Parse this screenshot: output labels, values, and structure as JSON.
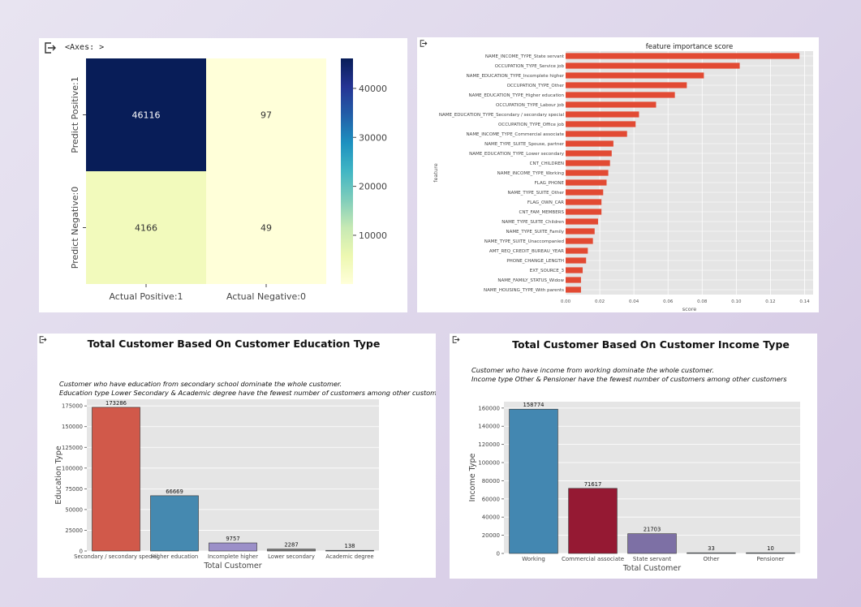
{
  "panels": {
    "heatmap_header": "<Axes: >"
  },
  "icons": [
    "output-icon"
  ],
  "colors": {
    "ylgnbu_low": "#f0f9b7",
    "ylgnbu_mid": "#41b6c4",
    "ylgnbu_high": "#081d58",
    "bar_red": "#e24a33",
    "edu_colors": [
      "#d1594a",
      "#4589b0",
      "#9b8fc8",
      "#7a7a7a",
      "#9ab0c4"
    ],
    "income_colors": [
      "#4387b1",
      "#951933",
      "#7d70a5",
      "#9cb2c5",
      "#9cb2c5"
    ],
    "plot_bg": "#e5e5e5"
  },
  "chart_data": [
    {
      "type": "heatmap",
      "title": "",
      "x_labels": [
        "Actual Positive:1",
        "Actual Negative:0"
      ],
      "y_labels": [
        "Predict Positive:1",
        "Predict Negative:0"
      ],
      "values": [
        [
          46116,
          97
        ],
        [
          4166,
          49
        ]
      ],
      "cell_labels": [
        "46116",
        "97",
        "4166",
        "49"
      ],
      "colorbar_ticks": [
        "10000",
        "20000",
        "30000",
        "40000"
      ],
      "colorbar_tick_values": [
        10000,
        20000,
        30000,
        40000
      ],
      "colorbar_range": [
        49,
        46116
      ],
      "colormap": "YlGnBu"
    },
    {
      "type": "bar",
      "orientation": "horizontal",
      "title": "feature importance score",
      "xlabel": "score",
      "ylabel": "feature",
      "xlim": [
        0,
        0.145
      ],
      "xticks": [
        "0.00",
        "0.02",
        "0.04",
        "0.06",
        "0.08",
        "0.10",
        "0.12",
        "0.14"
      ],
      "xtick_values": [
        0,
        0.02,
        0.04,
        0.06,
        0.08,
        0.1,
        0.12,
        0.14
      ],
      "categories": [
        "NAME_INCOME_TYPE_State servant",
        "OCCUPATION_TYPE_Service job",
        "NAME_EDUCATION_TYPE_Incomplete higher",
        "OCCUPATION_TYPE_Other",
        "NAME_EDUCATION_TYPE_Higher education",
        "OCCUPATION_TYPE_Labour job",
        "NAME_EDUCATION_TYPE_Secondary / secondary special",
        "OCCUPATION_TYPE_Office job",
        "NAME_INCOME_TYPE_Commercial associate",
        "NAME_TYPE_SUITE_Spouse, partner",
        "NAME_EDUCATION_TYPE_Lower secondary",
        "CNT_CHILDREN",
        "NAME_INCOME_TYPE_Working",
        "FLAG_PHONE",
        "NAME_TYPE_SUITE_Other",
        "FLAG_OWN_CAR",
        "CNT_FAM_MEMBERS",
        "NAME_TYPE_SUITE_Children",
        "NAME_TYPE_SUITE_Family",
        "NAME_TYPE_SUITE_Unaccompanied",
        "AMT_REQ_CREDIT_BUREAU_YEAR",
        "PHONE_CHANGE_LENGTH",
        "EXT_SOURCE_3",
        "NAME_FAMILY_STATUS_Widow",
        "NAME_HOUSING_TYPE_With parents"
      ],
      "values": [
        0.137,
        0.102,
        0.081,
        0.071,
        0.064,
        0.053,
        0.043,
        0.041,
        0.036,
        0.028,
        0.027,
        0.026,
        0.025,
        0.024,
        0.022,
        0.021,
        0.021,
        0.019,
        0.017,
        0.016,
        0.013,
        0.012,
        0.01,
        0.009,
        0.009
      ]
    },
    {
      "type": "bar",
      "title": "Total Customer Based On Customer Education Type",
      "annotation": [
        "Customer who have education from secondary school dominate the whole customer.",
        " Education type Lower Secondary & Academic degree have the fewest number of customers among other customers"
      ],
      "xlabel": "Total Customer",
      "ylabel": "Education Type",
      "ylim": [
        0,
        183000
      ],
      "yticks": [
        "0",
        "25000",
        "50000",
        "75000",
        "100000",
        "125000",
        "150000",
        "175000"
      ],
      "ytick_values": [
        0,
        25000,
        50000,
        75000,
        100000,
        125000,
        150000,
        175000
      ],
      "categories": [
        "Secondary / secondary special",
        "Higher education",
        "Incomplete higher",
        "Lower secondary",
        "Academic degree"
      ],
      "values": [
        173286,
        66669,
        9757,
        2287,
        138
      ],
      "value_labels": [
        "173286",
        "66669",
        "9757",
        "2287",
        "138"
      ]
    },
    {
      "type": "bar",
      "title": "Total Customer Based On Customer Income Type",
      "annotation": [
        "Customer who have income from working dominate the whole customer.",
        "Income type Other & Pensioner have the fewest number of customers among other customers"
      ],
      "xlabel": "Total Customer",
      "ylabel": "Income Type",
      "ylim": [
        0,
        167000
      ],
      "yticks": [
        "0",
        "20000",
        "40000",
        "60000",
        "80000",
        "100000",
        "120000",
        "140000",
        "160000"
      ],
      "ytick_values": [
        0,
        20000,
        40000,
        60000,
        80000,
        100000,
        120000,
        140000,
        160000
      ],
      "categories": [
        "Working",
        "Commercial associate",
        "State servant",
        "Other",
        "Pensioner"
      ],
      "values": [
        158774,
        71617,
        21703,
        33,
        10
      ],
      "value_labels": [
        "158774",
        "71617",
        "21703",
        "33",
        "10"
      ]
    }
  ]
}
